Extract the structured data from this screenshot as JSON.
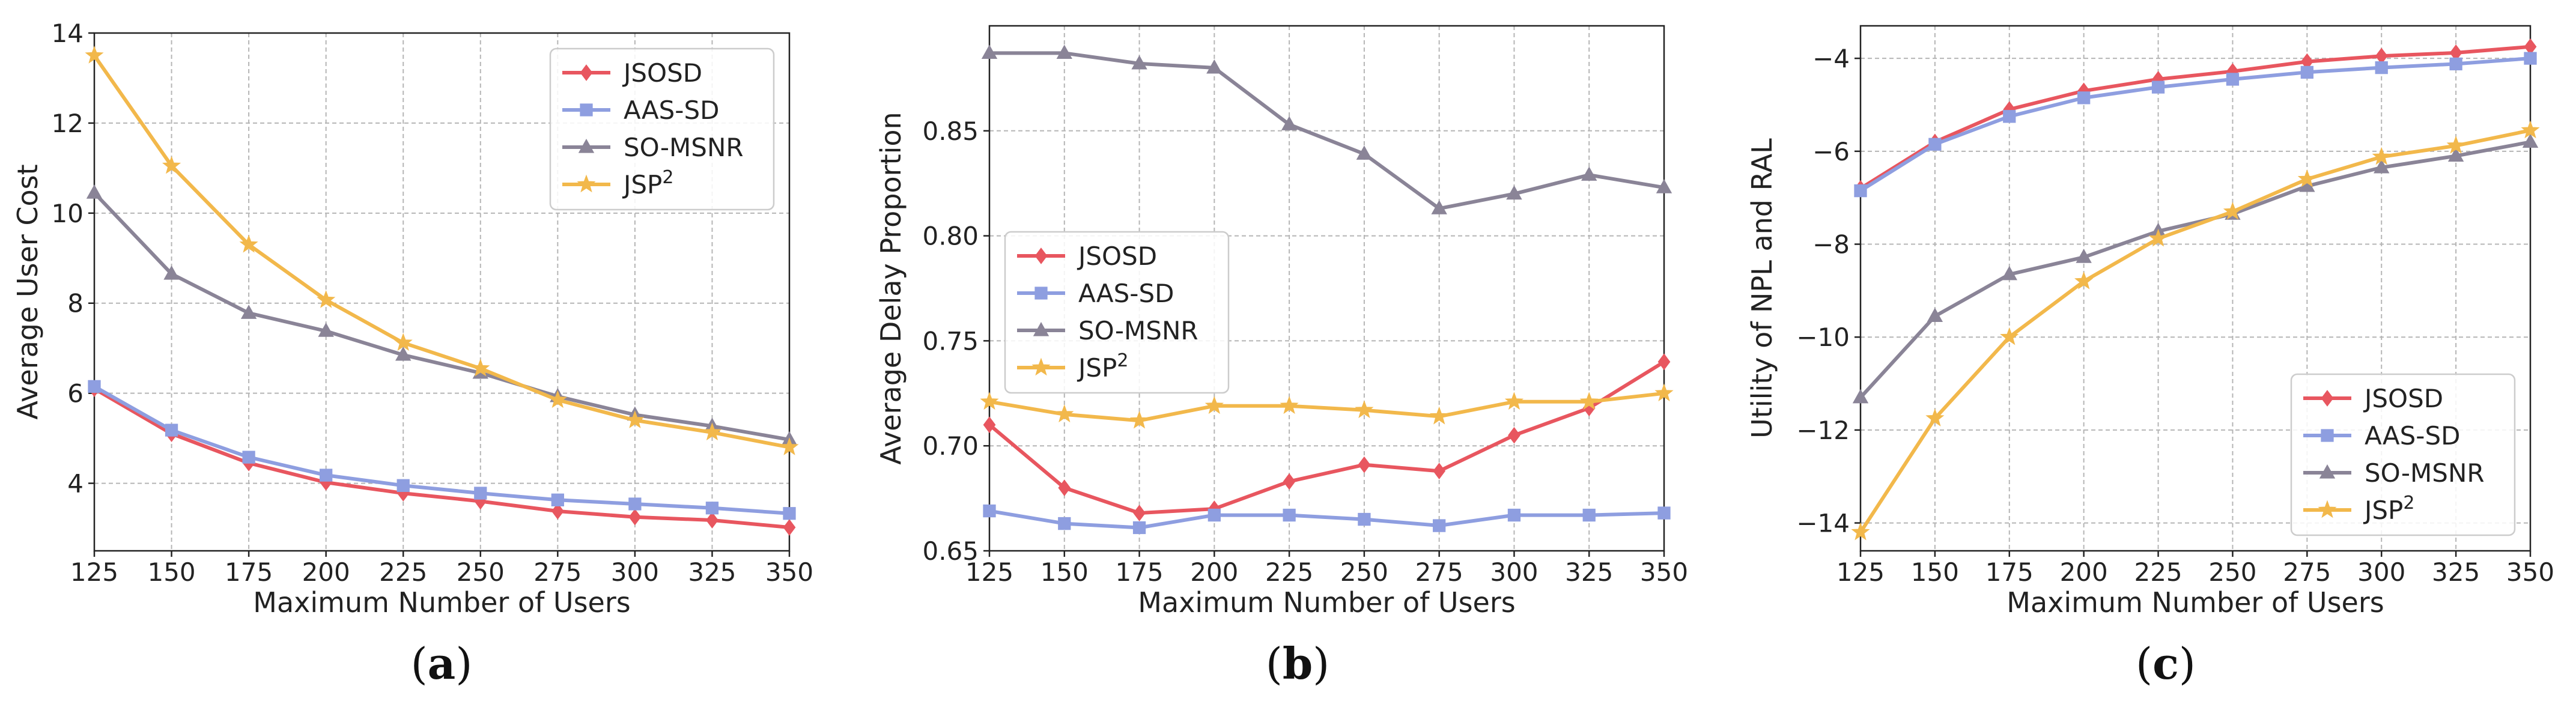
{
  "colors": {
    "JSOSD": "#e8565f",
    "AAS-SD": "#8e9ee0",
    "SO-MSNR": "#8a8497",
    "JSP2": "#f2b84b"
  },
  "chart_data": [
    {
      "type": "line",
      "caption": "a",
      "xlabel": "Maximum Number of Users",
      "ylabel": "Average User Cost",
      "x": [
        125,
        150,
        175,
        200,
        225,
        250,
        275,
        300,
        325,
        350
      ],
      "xlim": [
        125,
        350
      ],
      "ylim": [
        2.5,
        14
      ],
      "yticks": [
        4,
        6,
        8,
        10,
        12,
        14
      ],
      "ytick_labels": [
        "4",
        "6",
        "8",
        "10",
        "12",
        "14"
      ],
      "legend_position": "upper-right",
      "series": [
        {
          "name": "JSOSD",
          "label": "JSOSD",
          "sup": "",
          "marker": "diamond",
          "values": [
            6.1,
            5.1,
            4.45,
            4.02,
            3.78,
            3.6,
            3.38,
            3.25,
            3.18,
            3.02
          ]
        },
        {
          "name": "AAS-SD",
          "label": "AAS-SD",
          "sup": "",
          "marker": "square",
          "values": [
            6.15,
            5.18,
            4.58,
            4.18,
            3.95,
            3.78,
            3.63,
            3.54,
            3.45,
            3.33
          ]
        },
        {
          "name": "SO-MSNR",
          "label": "SO-MSNR",
          "sup": "",
          "marker": "triangle",
          "values": [
            10.45,
            8.65,
            7.78,
            7.38,
            6.85,
            6.45,
            5.93,
            5.52,
            5.27,
            4.97
          ]
        },
        {
          "name": "JSP2",
          "label": "JSP",
          "sup": "2",
          "marker": "star",
          "values": [
            13.5,
            11.05,
            9.3,
            8.07,
            7.12,
            6.55,
            5.85,
            5.4,
            5.13,
            4.8
          ]
        }
      ]
    },
    {
      "type": "line",
      "caption": "b",
      "xlabel": "Maximum Number of Users",
      "ylabel": "Average Delay Proportion",
      "x": [
        125,
        150,
        175,
        200,
        225,
        250,
        275,
        300,
        325,
        350
      ],
      "xlim": [
        125,
        350
      ],
      "ylim": [
        0.65,
        0.9
      ],
      "yticks": [
        0.65,
        0.7,
        0.75,
        0.8,
        0.85
      ],
      "ytick_labels": [
        "0.65",
        "0.70",
        "0.75",
        "0.80",
        "0.85"
      ],
      "legend_position": "center-left",
      "series": [
        {
          "name": "JSOSD",
          "label": "JSOSD",
          "sup": "",
          "marker": "diamond",
          "values": [
            0.71,
            0.68,
            0.668,
            0.67,
            0.683,
            0.691,
            0.688,
            0.705,
            0.718,
            0.74
          ]
        },
        {
          "name": "AAS-SD",
          "label": "AAS-SD",
          "sup": "",
          "marker": "square",
          "values": [
            0.669,
            0.663,
            0.661,
            0.667,
            0.667,
            0.665,
            0.662,
            0.667,
            0.667,
            0.668
          ]
        },
        {
          "name": "SO-MSNR",
          "label": "SO-MSNR",
          "sup": "",
          "marker": "triangle",
          "values": [
            0.887,
            0.887,
            0.882,
            0.88,
            0.853,
            0.839,
            0.813,
            0.82,
            0.829,
            0.823
          ]
        },
        {
          "name": "JSP2",
          "label": "JSP",
          "sup": "2",
          "marker": "star",
          "values": [
            0.721,
            0.715,
            0.712,
            0.719,
            0.719,
            0.717,
            0.714,
            0.721,
            0.721,
            0.725
          ]
        }
      ]
    },
    {
      "type": "line",
      "caption": "c",
      "xlabel": "Maximum Number of Users",
      "ylabel": "Utility of NPL and RAL",
      "x": [
        125,
        150,
        175,
        200,
        225,
        250,
        275,
        300,
        325,
        350
      ],
      "xlim": [
        125,
        350
      ],
      "ylim": [
        -14.6,
        -3.3
      ],
      "yticks": [
        -14,
        -12,
        -10,
        -8,
        -6,
        -4
      ],
      "ytick_labels": [
        "−14",
        "−12",
        "−10",
        "−8",
        "−6",
        "−4"
      ],
      "legend_position": "lower-right",
      "series": [
        {
          "name": "JSOSD",
          "label": "JSOSD",
          "sup": "",
          "marker": "diamond",
          "values": [
            -6.8,
            -5.8,
            -5.1,
            -4.7,
            -4.45,
            -4.28,
            -4.07,
            -3.95,
            -3.88,
            -3.75
          ]
        },
        {
          "name": "AAS-SD",
          "label": "AAS-SD",
          "sup": "",
          "marker": "square",
          "values": [
            -6.85,
            -5.85,
            -5.25,
            -4.85,
            -4.62,
            -4.45,
            -4.3,
            -4.2,
            -4.12,
            -4.0
          ]
        },
        {
          "name": "SO-MSNR",
          "label": "SO-MSNR",
          "sup": "",
          "marker": "triangle",
          "values": [
            -11.3,
            -9.55,
            -8.65,
            -8.28,
            -7.72,
            -7.35,
            -6.75,
            -6.35,
            -6.1,
            -5.8
          ]
        },
        {
          "name": "JSP2",
          "label": "JSP",
          "sup": "2",
          "marker": "star",
          "values": [
            -14.2,
            -11.75,
            -10.0,
            -8.8,
            -7.88,
            -7.3,
            -6.6,
            -6.12,
            -5.88,
            -5.55
          ]
        }
      ]
    }
  ]
}
